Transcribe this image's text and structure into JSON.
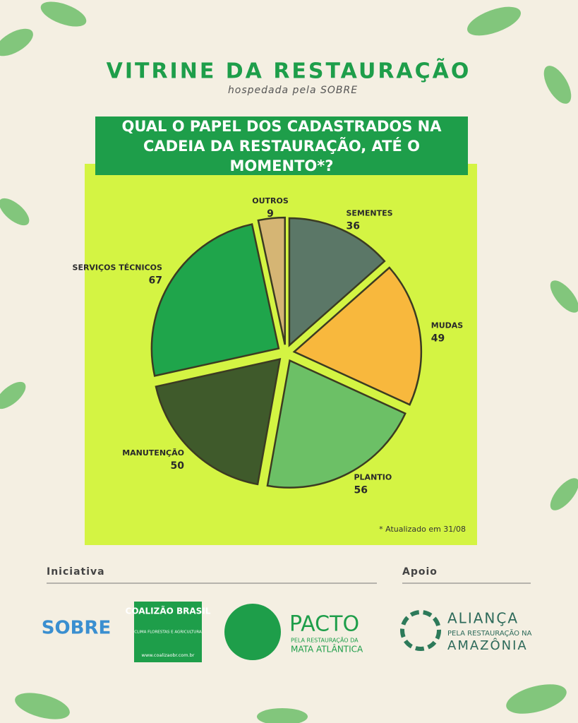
{
  "header": {
    "title": "VITRINE DA RESTAURAÇÃO",
    "subtitle": "hospedada pela SOBRE"
  },
  "chart_data": {
    "type": "pie",
    "title": "QUAL O PAPEL DOS CADASTRADOS NA CADEIA DA RESTAURAÇÃO, ATÉ O MOMENTO*?",
    "categories": [
      "SEMENTES",
      "MUDAS",
      "PLANTIO",
      "MANUTENÇÃO",
      "SERVIÇOS TÉCNICOS",
      "OUTROS"
    ],
    "values": [
      36,
      49,
      56,
      50,
      67,
      9
    ],
    "colors": [
      "#5b7767",
      "#f8b83d",
      "#6cc066",
      "#3f5a2b",
      "#1fa54b",
      "#d5b574"
    ],
    "note": "* Atualizado em 31/08"
  },
  "footer": {
    "initiative": "Iniciativa",
    "support": "Apoio",
    "logos": [
      "SOBRE",
      "COALIZÃO BRASIL",
      "CLIMA FLORESTAS E AGRICULTURA",
      "www.coalizaobr.com.br",
      "PACTO",
      "PELA RESTAURAÇÃO DA",
      "MATA ATLÂNTICA",
      "ALIANÇA",
      "PELA RESTAURAÇÃO NA",
      "AMAZÔNIA"
    ]
  }
}
